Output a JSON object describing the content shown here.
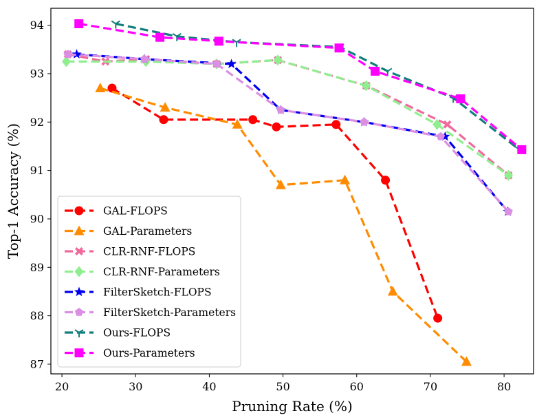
{
  "chart_data": {
    "type": "line",
    "title": "",
    "xlabel": "Pruning Rate (%)",
    "ylabel": "Top-1 Accuracy (%)",
    "xlim": [
      18.5,
      84
    ],
    "ylim": [
      86.8,
      94.35
    ],
    "xticks": [
      20,
      30,
      40,
      50,
      60,
      70,
      80
    ],
    "yticks": [
      87,
      88,
      89,
      90,
      91,
      92,
      93,
      94
    ],
    "grid": false,
    "legend_position": "lower-left",
    "series": [
      {
        "name": "GAL-FLOPS",
        "color": "#ff0000",
        "marker": "circle",
        "x": [
          26.8,
          33.8,
          45.9,
          49.1,
          57.2,
          63.9,
          71.0
        ],
        "y": [
          92.7,
          92.05,
          92.05,
          91.9,
          91.95,
          90.8,
          87.95
        ]
      },
      {
        "name": "GAL-Parameters",
        "color": "#ff8c00",
        "marker": "triangle",
        "x": [
          25.2,
          34.0,
          43.8,
          49.7,
          58.4,
          64.9,
          74.9
        ],
        "y": [
          92.7,
          92.3,
          91.95,
          90.7,
          90.8,
          88.5,
          87.05
        ]
      },
      {
        "name": "CLR-RNF-FLOPS",
        "color": "#f0699c",
        "marker": "x-filled",
        "x": [
          20.8,
          25.9,
          31.4,
          41.0,
          49.3,
          61.3,
          72.3,
          80.6
        ],
        "y": [
          93.4,
          93.25,
          93.3,
          93.2,
          93.28,
          92.75,
          91.95,
          90.9
        ]
      },
      {
        "name": "CLR-RNF-Parameters",
        "color": "#90ee90",
        "marker": "diamond",
        "x": [
          20.6,
          31.4,
          41.0,
          49.3,
          61.3,
          70.9,
          80.6
        ],
        "y": [
          93.25,
          93.25,
          93.2,
          93.28,
          92.75,
          91.95,
          90.9
        ]
      },
      {
        "name": "FilterSketch-FLOPS",
        "color": "#0000ee",
        "marker": "star",
        "x": [
          22.0,
          31.2,
          43.0,
          49.7,
          61.0,
          72.0,
          80.5
        ],
        "y": [
          93.4,
          93.3,
          93.2,
          92.25,
          92.0,
          91.7,
          90.15
        ]
      },
      {
        "name": "FilterSketch-Parameters",
        "color": "#da8fe3",
        "marker": "pentagon",
        "x": [
          20.8,
          31.2,
          41.0,
          49.7,
          61.0,
          71.4,
          80.6
        ],
        "y": [
          93.4,
          93.3,
          93.2,
          92.25,
          92.0,
          91.7,
          90.15
        ]
      },
      {
        "name": "Ours-FLOPS",
        "color": "#127e7e",
        "marker": "tri",
        "x": [
          27.3,
          35.6,
          43.7,
          57.7,
          64.2,
          73.1,
          81.9
        ],
        "y": [
          94.03,
          93.77,
          93.65,
          93.55,
          93.05,
          92.5,
          91.45
        ]
      },
      {
        "name": "Ours-Parameters",
        "color": "#ff00ff",
        "marker": "square",
        "x": [
          22.3,
          33.3,
          41.3,
          57.6,
          62.5,
          74.1,
          82.4
        ],
        "y": [
          94.03,
          93.75,
          93.67,
          93.53,
          93.05,
          92.48,
          91.43
        ]
      }
    ]
  }
}
